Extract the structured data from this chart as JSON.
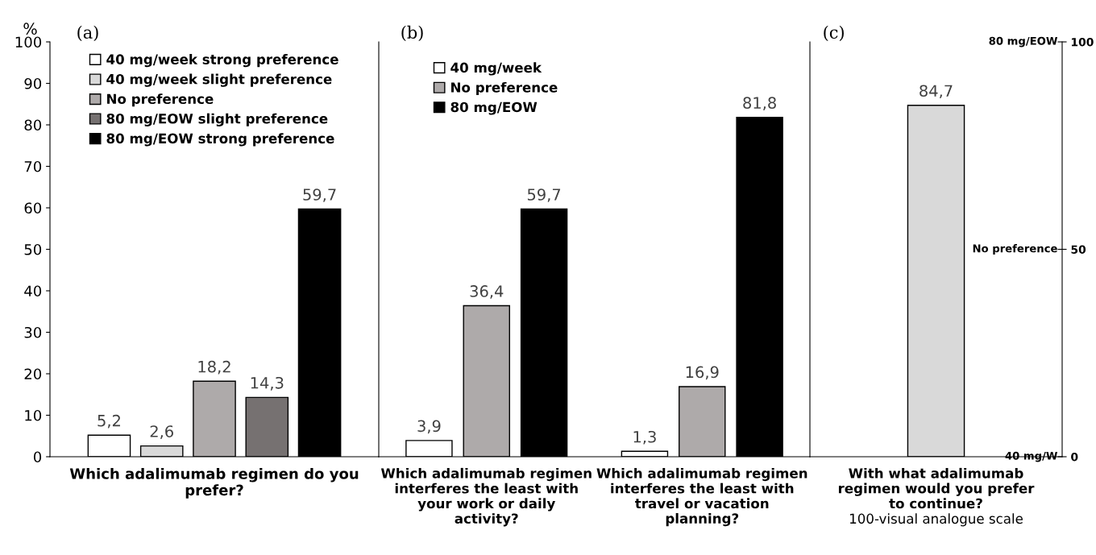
{
  "chart_data": [
    {
      "type": "bar",
      "title": "(a)",
      "ylabel": "%",
      "categories": [
        "Which adalimumab regimen do you prefer?"
      ],
      "ylim": [
        0,
        100
      ],
      "yticks": [
        0,
        10,
        20,
        30,
        40,
        50,
        60,
        70,
        80,
        90,
        100
      ],
      "legend": "top",
      "grid": false,
      "series": [
        {
          "name": "40 mg/week strong preference",
          "color": "#ffffff",
          "values": [
            5.2
          ],
          "value_labels": [
            "5,2"
          ]
        },
        {
          "name": "40 mg/week slight preference",
          "color": "#d9d9d9",
          "values": [
            2.6
          ],
          "value_labels": [
            "2,6"
          ]
        },
        {
          "name": "No preference",
          "color": "#aeaaaa",
          "values": [
            18.2
          ],
          "value_labels": [
            "18,2"
          ]
        },
        {
          "name": "80 mg/EOW slight preference",
          "color": "#767171",
          "values": [
            14.3
          ],
          "value_labels": [
            "14,3"
          ]
        },
        {
          "name": "80 mg/EOW strong preference",
          "color": "#000000",
          "values": [
            59.7
          ],
          "value_labels": [
            "59,7"
          ]
        }
      ]
    },
    {
      "type": "bar",
      "title": "(b)",
      "categories": [
        "Which adalimumab regimen interferes the least with your work or daily activity?",
        "Which adalimumab regimen interferes the least with travel or vacation planning?"
      ],
      "ylim": [
        0,
        100
      ],
      "tick_labels": "x",
      "legend": "top left",
      "grid": false,
      "series": [
        {
          "name": "40 mg/week",
          "color": "#ffffff",
          "values": [
            3.9,
            1.3
          ],
          "value_labels": [
            "3,9",
            "1,3"
          ]
        },
        {
          "name": "No preference",
          "color": "#aeaaaa",
          "values": [
            36.4,
            16.9
          ],
          "value_labels": [
            "36,4",
            "16,9"
          ]
        },
        {
          "name": "80 mg/EOW",
          "color": "#000000",
          "values": [
            59.7,
            81.8
          ],
          "value_labels": [
            "59,7",
            "81,8"
          ]
        }
      ]
    },
    {
      "type": "bar",
      "title": "(c)",
      "xlabel": "100-visual analogue scale",
      "categories": [
        "With what adalimumab regimen would you prefer to continue?"
      ],
      "ylim": [
        0,
        100
      ],
      "yticks": [
        0,
        50,
        100
      ],
      "legend": false,
      "grid": false,
      "annotations": [
        "40 mg/W",
        "No preference",
        "80 mg/EOW"
      ],
      "series": [
        {
          "color": "#d9d9d9",
          "values": [
            84.7
          ],
          "value_labels": [
            "84,7"
          ]
        }
      ]
    }
  ]
}
